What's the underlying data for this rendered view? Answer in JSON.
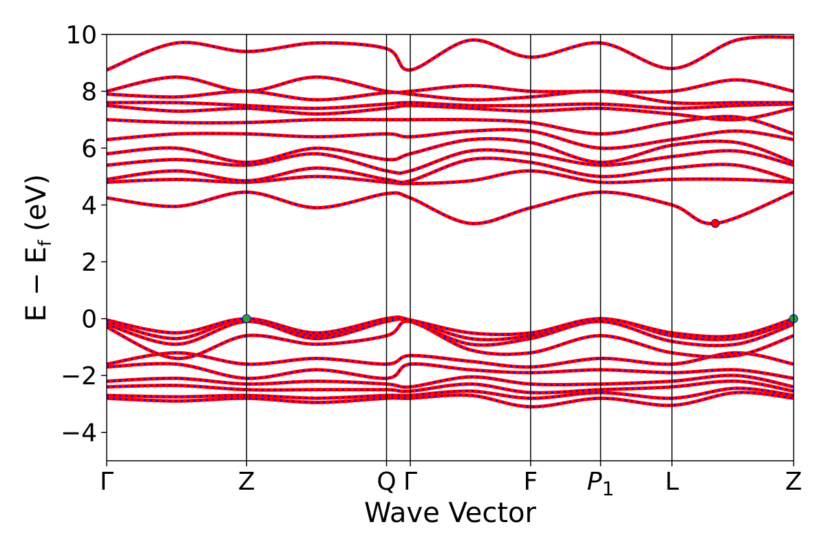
{
  "chart_data": {
    "type": "line",
    "xlabel": "Wave Vector",
    "ylabel": "E − E",
    "ylabel_subscript": "f",
    "ylabel_unit": " (eV)",
    "ylim": [
      -5,
      10
    ],
    "yticks": [
      -4,
      -2,
      0,
      2,
      4,
      6,
      8,
      10
    ],
    "grid": false,
    "legend": "none",
    "colors": {
      "band_solid": "#ff0000",
      "band_dash": "#0000ff",
      "vbm_marker": "#2ca02c",
      "cbm_marker": "#ff0000",
      "kpath_line": "#000000"
    },
    "kpath": [
      {
        "label": "Γ",
        "x": 0.0
      },
      {
        "label": "Z",
        "x": 1.0
      },
      {
        "label": "Q",
        "x": 2.0
      },
      {
        "label": "Γ",
        "x": 2.17
      },
      {
        "label": "F",
        "x": 3.03
      },
      {
        "label": "P",
        "sub": "1",
        "x": 3.53
      },
      {
        "label": "L",
        "x": 4.04
      },
      {
        "label": "Z",
        "x": 4.91
      }
    ],
    "series": [
      {
        "values": [
          [
            0,
            -2.8
          ],
          [
            0.5,
            -2.9
          ],
          [
            1,
            -2.8
          ],
          [
            1.5,
            -2.95
          ],
          [
            2,
            -2.8
          ],
          [
            2.17,
            -2.8
          ],
          [
            2.6,
            -2.7
          ],
          [
            3.03,
            -3.1
          ],
          [
            3.53,
            -2.8
          ],
          [
            4.04,
            -3.05
          ],
          [
            4.5,
            -2.6
          ],
          [
            4.91,
            -2.8
          ]
        ]
      },
      {
        "values": [
          [
            0,
            -2.7
          ],
          [
            0.5,
            -2.75
          ],
          [
            1,
            -2.7
          ],
          [
            1.5,
            -2.8
          ],
          [
            2,
            -2.7
          ],
          [
            2.17,
            -2.7
          ],
          [
            2.6,
            -2.55
          ],
          [
            3.03,
            -2.8
          ],
          [
            3.53,
            -2.6
          ],
          [
            4.04,
            -2.8
          ],
          [
            4.5,
            -2.45
          ],
          [
            4.91,
            -2.7
          ]
        ]
      },
      {
        "values": [
          [
            0,
            -2.4
          ],
          [
            0.5,
            -2.35
          ],
          [
            1,
            -2.5
          ],
          [
            1.5,
            -2.5
          ],
          [
            2,
            -2.5
          ],
          [
            2.17,
            -2.55
          ],
          [
            2.6,
            -2.3
          ],
          [
            3.03,
            -2.6
          ],
          [
            3.53,
            -2.5
          ],
          [
            4.04,
            -2.4
          ],
          [
            4.5,
            -2.2
          ],
          [
            4.91,
            -2.55
          ]
        ]
      },
      {
        "values": [
          [
            0,
            -2.2
          ],
          [
            0.5,
            -2.1
          ],
          [
            1,
            -2.3
          ],
          [
            1.5,
            -2.2
          ],
          [
            2,
            -2.3
          ],
          [
            2.17,
            -2.4
          ],
          [
            2.6,
            -2.05
          ],
          [
            3.03,
            -2.3
          ],
          [
            3.53,
            -2.3
          ],
          [
            4.04,
            -2.2
          ],
          [
            4.5,
            -2.0
          ],
          [
            4.91,
            -2.4
          ]
        ]
      },
      {
        "values": [
          [
            0,
            -1.7
          ],
          [
            0.5,
            -1.6
          ],
          [
            1,
            -2.1
          ],
          [
            1.5,
            -1.8
          ],
          [
            2,
            -2.1
          ],
          [
            2.17,
            -1.6
          ],
          [
            2.6,
            -1.8
          ],
          [
            3.03,
            -1.9
          ],
          [
            3.53,
            -1.8
          ],
          [
            4.04,
            -1.9
          ],
          [
            4.5,
            -1.8
          ],
          [
            4.91,
            -2.1
          ]
        ]
      },
      {
        "values": [
          [
            0,
            -1.6
          ],
          [
            0.5,
            -1.2
          ],
          [
            1,
            -1.6
          ],
          [
            1.5,
            -1.4
          ],
          [
            2,
            -1.6
          ],
          [
            2.17,
            -1.3
          ],
          [
            2.6,
            -1.5
          ],
          [
            3.03,
            -1.7
          ],
          [
            3.53,
            -1.4
          ],
          [
            4.04,
            -1.6
          ],
          [
            4.5,
            -1.2
          ],
          [
            4.91,
            -1.6
          ]
        ]
      },
      {
        "values": [
          [
            0,
            -0.3
          ],
          [
            0.5,
            -1.4
          ],
          [
            1,
            -0.6
          ],
          [
            1.5,
            -0.9
          ],
          [
            2,
            -0.6
          ],
          [
            2.17,
            -0.1
          ],
          [
            2.6,
            -1.1
          ],
          [
            3.03,
            -1.2
          ],
          [
            3.53,
            -0.6
          ],
          [
            4.04,
            -1.2
          ],
          [
            4.5,
            -1.3
          ],
          [
            4.91,
            -0.6
          ]
        ]
      },
      {
        "values": [
          [
            0,
            -0.2
          ],
          [
            0.5,
            -0.9
          ],
          [
            1,
            -0.1
          ],
          [
            1.5,
            -0.7
          ],
          [
            2,
            -0.1
          ],
          [
            2.17,
            -0.1
          ],
          [
            2.6,
            -0.9
          ],
          [
            3.03,
            -0.7
          ],
          [
            3.53,
            -0.1
          ],
          [
            4.04,
            -0.8
          ],
          [
            4.5,
            -0.9
          ],
          [
            4.91,
            -0.2
          ]
        ]
      },
      {
        "values": [
          [
            0,
            -0.1
          ],
          [
            0.5,
            -0.7
          ],
          [
            1,
            0.0
          ],
          [
            1.5,
            -0.6
          ],
          [
            2,
            0.0
          ],
          [
            2.17,
            -0.05
          ],
          [
            2.6,
            -0.7
          ],
          [
            3.03,
            -0.6
          ],
          [
            3.53,
            0.0
          ],
          [
            4.04,
            -0.6
          ],
          [
            4.5,
            -0.7
          ],
          [
            4.91,
            -0.1
          ]
        ]
      },
      {
        "values": [
          [
            0,
            -0.05
          ],
          [
            0.5,
            -0.5
          ],
          [
            1,
            0.0
          ],
          [
            1.5,
            -0.5
          ],
          [
            2,
            0.0
          ],
          [
            2.17,
            -0.05
          ],
          [
            2.6,
            -0.5
          ],
          [
            3.03,
            -0.5
          ],
          [
            3.53,
            0.0
          ],
          [
            4.04,
            -0.5
          ],
          [
            4.5,
            -0.6
          ],
          [
            4.91,
            0.0
          ]
        ]
      },
      {
        "values": [
          [
            0,
            4.25
          ],
          [
            0.5,
            3.95
          ],
          [
            1,
            4.45
          ],
          [
            1.5,
            3.9
          ],
          [
            2,
            4.4
          ],
          [
            2.17,
            4.25
          ],
          [
            2.6,
            3.35
          ],
          [
            3.03,
            3.9
          ],
          [
            3.53,
            4.45
          ],
          [
            4.04,
            4.0
          ],
          [
            4.35,
            3.35
          ],
          [
            4.91,
            4.45
          ]
        ]
      },
      {
        "values": [
          [
            0,
            4.8
          ],
          [
            0.5,
            4.9
          ],
          [
            1,
            4.8
          ],
          [
            1.5,
            5.0
          ],
          [
            2,
            4.8
          ],
          [
            2.17,
            4.75
          ],
          [
            2.6,
            4.85
          ],
          [
            3.03,
            5.2
          ],
          [
            3.53,
            4.8
          ],
          [
            4.04,
            4.9
          ],
          [
            4.5,
            4.9
          ],
          [
            4.91,
            4.8
          ]
        ]
      },
      {
        "values": [
          [
            0,
            4.9
          ],
          [
            0.5,
            5.2
          ],
          [
            1,
            4.85
          ],
          [
            1.5,
            5.3
          ],
          [
            2,
            4.9
          ],
          [
            2.17,
            4.85
          ],
          [
            2.6,
            5.6
          ],
          [
            3.03,
            5.5
          ],
          [
            3.53,
            5.0
          ],
          [
            4.04,
            5.3
          ],
          [
            4.5,
            5.4
          ],
          [
            4.91,
            4.85
          ]
        ]
      },
      {
        "values": [
          [
            0,
            5.4
          ],
          [
            0.5,
            5.6
          ],
          [
            1,
            5.4
          ],
          [
            1.5,
            5.8
          ],
          [
            2,
            5.2
          ],
          [
            2.17,
            5.2
          ],
          [
            2.6,
            5.9
          ],
          [
            3.03,
            5.8
          ],
          [
            3.53,
            5.4
          ],
          [
            4.04,
            5.7
          ],
          [
            4.5,
            5.9
          ],
          [
            4.91,
            5.4
          ]
        ]
      },
      {
        "values": [
          [
            0,
            5.8
          ],
          [
            0.5,
            6.0
          ],
          [
            1,
            5.5
          ],
          [
            1.5,
            6.0
          ],
          [
            2,
            5.6
          ],
          [
            2.17,
            5.8
          ],
          [
            2.6,
            6.3
          ],
          [
            3.03,
            6.2
          ],
          [
            3.53,
            5.5
          ],
          [
            4.04,
            6.1
          ],
          [
            4.5,
            6.2
          ],
          [
            4.91,
            5.5
          ]
        ]
      },
      {
        "values": [
          [
            0,
            6.3
          ],
          [
            0.5,
            6.5
          ],
          [
            1,
            6.5
          ],
          [
            1.5,
            6.4
          ],
          [
            2,
            6.5
          ],
          [
            2.17,
            6.4
          ],
          [
            2.6,
            6.6
          ],
          [
            3.03,
            6.6
          ],
          [
            3.53,
            6.0
          ],
          [
            4.04,
            6.3
          ],
          [
            4.5,
            6.6
          ],
          [
            4.91,
            6.3
          ]
        ]
      },
      {
        "values": [
          [
            0,
            7.0
          ],
          [
            0.5,
            6.9
          ],
          [
            1,
            6.9
          ],
          [
            1.5,
            7.0
          ],
          [
            2,
            7.0
          ],
          [
            2.17,
            7.0
          ],
          [
            2.6,
            7.0
          ],
          [
            3.03,
            6.9
          ],
          [
            3.53,
            6.5
          ],
          [
            4.04,
            6.9
          ],
          [
            4.5,
            7.1
          ],
          [
            4.91,
            6.5
          ]
        ]
      },
      {
        "values": [
          [
            0,
            7.5
          ],
          [
            0.5,
            7.3
          ],
          [
            1,
            7.4
          ],
          [
            1.5,
            7.2
          ],
          [
            2,
            7.4
          ],
          [
            2.17,
            7.5
          ],
          [
            2.6,
            7.4
          ],
          [
            3.03,
            7.3
          ],
          [
            3.53,
            7.4
          ],
          [
            4.04,
            7.2
          ],
          [
            4.5,
            7.0
          ],
          [
            4.91,
            7.4
          ]
        ]
      },
      {
        "values": [
          [
            0,
            7.6
          ],
          [
            0.5,
            7.6
          ],
          [
            1,
            7.5
          ],
          [
            1.5,
            7.4
          ],
          [
            2,
            7.55
          ],
          [
            2.17,
            7.6
          ],
          [
            2.6,
            7.5
          ],
          [
            3.03,
            7.5
          ],
          [
            3.53,
            7.55
          ],
          [
            4.04,
            7.4
          ],
          [
            4.5,
            7.5
          ],
          [
            4.91,
            7.55
          ]
        ]
      },
      {
        "values": [
          [
            0,
            7.9
          ],
          [
            0.5,
            7.8
          ],
          [
            1,
            8.0
          ],
          [
            1.5,
            7.7
          ],
          [
            2,
            7.95
          ],
          [
            2.17,
            7.9
          ],
          [
            2.6,
            7.7
          ],
          [
            3.03,
            7.8
          ],
          [
            3.53,
            8.0
          ],
          [
            4.04,
            7.6
          ],
          [
            4.5,
            7.6
          ],
          [
            4.91,
            7.6
          ]
        ]
      },
      {
        "values": [
          [
            0,
            8.0
          ],
          [
            0.5,
            8.5
          ],
          [
            1,
            8.0
          ],
          [
            1.5,
            8.5
          ],
          [
            2,
            8.0
          ],
          [
            2.17,
            8.0
          ],
          [
            2.6,
            8.2
          ],
          [
            3.03,
            8.0
          ],
          [
            3.53,
            8.0
          ],
          [
            4.04,
            8.0
          ],
          [
            4.5,
            8.4
          ],
          [
            4.91,
            8.0
          ]
        ]
      },
      {
        "values": [
          [
            0,
            8.75
          ],
          [
            0.5,
            9.7
          ],
          [
            1,
            9.4
          ],
          [
            1.5,
            9.7
          ],
          [
            2,
            9.5
          ],
          [
            2.17,
            8.75
          ],
          [
            2.6,
            9.8
          ],
          [
            3.03,
            9.2
          ],
          [
            3.53,
            9.7
          ],
          [
            4.04,
            8.8
          ],
          [
            4.5,
            9.8
          ],
          [
            4.91,
            9.9
          ]
        ]
      }
    ],
    "markers": [
      {
        "name": "vbm",
        "x": 1.0,
        "y": 0.0,
        "color": "#2ca02c"
      },
      {
        "name": "vbm",
        "x": 4.91,
        "y": 0.0,
        "color": "#2ca02c"
      },
      {
        "name": "cbm",
        "x": 4.35,
        "y": 3.35,
        "color": "#ff0000"
      }
    ]
  }
}
